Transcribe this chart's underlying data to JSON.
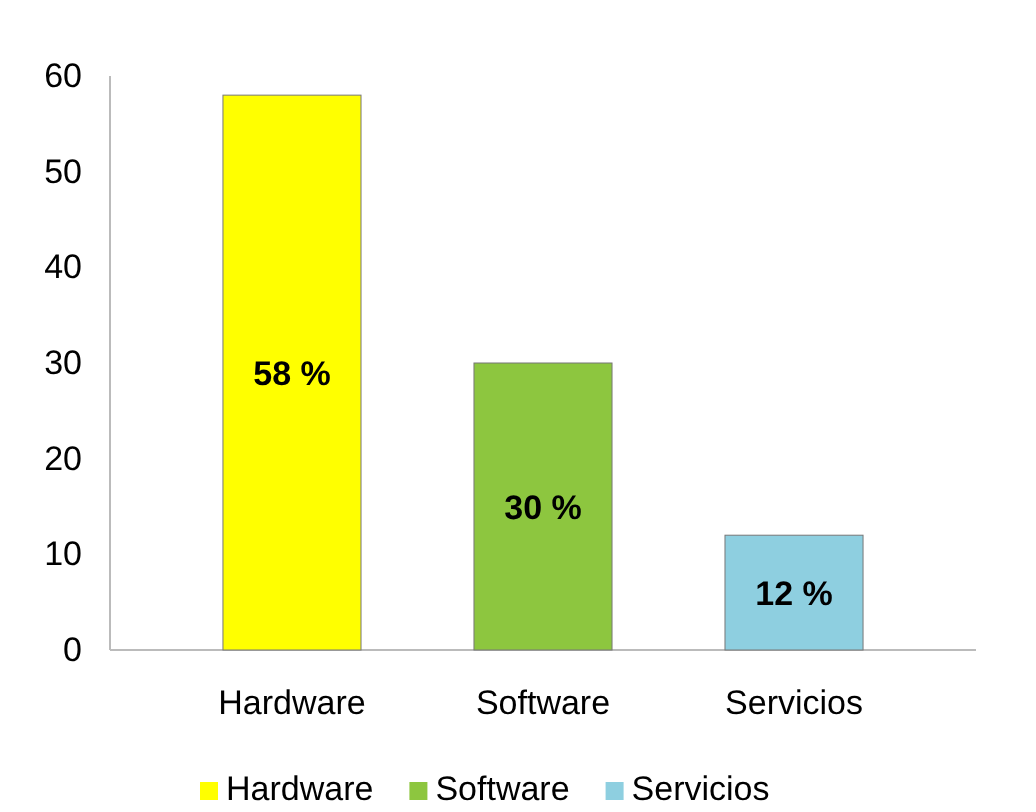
{
  "chart_data": {
    "type": "bar",
    "categories": [
      "Hardware",
      "Software",
      "Servicios"
    ],
    "series": [
      {
        "name": "Hardware",
        "color": "#ffff00",
        "values": [
          58,
          null,
          null
        ],
        "value_labels": [
          "58 %",
          null,
          null
        ]
      },
      {
        "name": "Software",
        "color": "#8dc63f",
        "values": [
          null,
          30,
          null
        ],
        "value_labels": [
          null,
          "30 %",
          null
        ]
      },
      {
        "name": "Servicios",
        "color": "#8ecfe0",
        "values": [
          null,
          null,
          12
        ],
        "value_labels": [
          null,
          null,
          "12 %"
        ]
      }
    ],
    "ylim": [
      0,
      60
    ],
    "yticks": [
      0,
      10,
      20,
      30,
      40,
      50,
      60
    ],
    "grid": false,
    "legend": "bottom"
  }
}
